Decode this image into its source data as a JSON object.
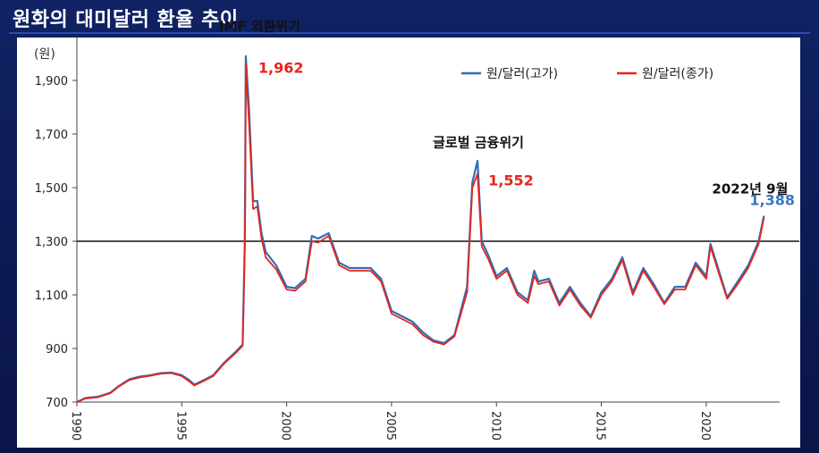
{
  "slide": {
    "title": "원화의 대미달러 환율 추이"
  },
  "chart_data": {
    "type": "line",
    "ylabel": "(원)",
    "ylim": [
      700,
      2000
    ],
    "xlim": [
      1990,
      2023.5
    ],
    "yticks": [
      700,
      900,
      1100,
      1300,
      1500,
      1700,
      1900
    ],
    "ytick_labels": [
      "700",
      "900",
      "1,100",
      "1,300",
      "1,500",
      "1,700",
      "1,900"
    ],
    "xticks": [
      1990,
      1995,
      2000,
      2005,
      2010,
      2015,
      2020
    ],
    "xtick_labels": [
      "1990",
      "1995",
      "2000",
      "2005",
      "2010",
      "2015",
      "2020"
    ],
    "reference_line": 1300,
    "legend_position": "top-right",
    "series": [
      {
        "name": "원/달러(고가)",
        "color": "#2e6fb5",
        "points": [
          [
            1990.0,
            700
          ],
          [
            1990.4,
            715
          ],
          [
            1991.0,
            720
          ],
          [
            1991.6,
            735
          ],
          [
            1992.0,
            760
          ],
          [
            1992.5,
            785
          ],
          [
            1993.0,
            795
          ],
          [
            1993.5,
            800
          ],
          [
            1994.0,
            808
          ],
          [
            1994.5,
            810
          ],
          [
            1995.0,
            800
          ],
          [
            1995.3,
            785
          ],
          [
            1995.6,
            765
          ],
          [
            1996.0,
            780
          ],
          [
            1996.5,
            800
          ],
          [
            1997.0,
            845
          ],
          [
            1997.6,
            890
          ],
          [
            1997.9,
            915
          ],
          [
            1998.0,
            1280
          ],
          [
            1998.02,
            1500
          ],
          [
            1998.05,
            1990
          ],
          [
            1998.2,
            1800
          ],
          [
            1998.4,
            1450
          ],
          [
            1998.6,
            1450
          ],
          [
            1998.8,
            1330
          ],
          [
            1999.0,
            1260
          ],
          [
            1999.5,
            1210
          ],
          [
            2000.0,
            1130
          ],
          [
            2000.4,
            1125
          ],
          [
            2000.9,
            1160
          ],
          [
            2001.2,
            1320
          ],
          [
            2001.5,
            1310
          ],
          [
            2002.0,
            1330
          ],
          [
            2002.5,
            1220
          ],
          [
            2003.0,
            1200
          ],
          [
            2003.5,
            1200
          ],
          [
            2004.0,
            1200
          ],
          [
            2004.5,
            1160
          ],
          [
            2005.0,
            1040
          ],
          [
            2005.5,
            1020
          ],
          [
            2006.0,
            1000
          ],
          [
            2006.5,
            960
          ],
          [
            2007.0,
            930
          ],
          [
            2007.5,
            920
          ],
          [
            2008.0,
            950
          ],
          [
            2008.6,
            1130
          ],
          [
            2008.85,
            1520
          ],
          [
            2009.1,
            1600
          ],
          [
            2009.3,
            1300
          ],
          [
            2009.6,
            1250
          ],
          [
            2010.0,
            1170
          ],
          [
            2010.5,
            1200
          ],
          [
            2011.0,
            1110
          ],
          [
            2011.5,
            1080
          ],
          [
            2011.8,
            1190
          ],
          [
            2012.0,
            1150
          ],
          [
            2012.5,
            1160
          ],
          [
            2013.0,
            1070
          ],
          [
            2013.5,
            1130
          ],
          [
            2014.0,
            1070
          ],
          [
            2014.5,
            1020
          ],
          [
            2015.0,
            1110
          ],
          [
            2015.5,
            1160
          ],
          [
            2016.0,
            1240
          ],
          [
            2016.5,
            1110
          ],
          [
            2017.0,
            1200
          ],
          [
            2017.5,
            1140
          ],
          [
            2018.0,
            1070
          ],
          [
            2018.5,
            1130
          ],
          [
            2019.0,
            1130
          ],
          [
            2019.5,
            1220
          ],
          [
            2020.0,
            1170
          ],
          [
            2020.2,
            1290
          ],
          [
            2020.6,
            1190
          ],
          [
            2021.0,
            1090
          ],
          [
            2021.5,
            1150
          ],
          [
            2022.0,
            1210
          ],
          [
            2022.5,
            1300
          ],
          [
            2022.75,
            1395
          ]
        ]
      },
      {
        "name": "원/달러(종가)",
        "color": "#e8231b",
        "points": [
          [
            1990.0,
            700
          ],
          [
            1990.4,
            713
          ],
          [
            1991.0,
            718
          ],
          [
            1991.6,
            733
          ],
          [
            1992.0,
            758
          ],
          [
            1992.5,
            782
          ],
          [
            1993.0,
            792
          ],
          [
            1993.5,
            798
          ],
          [
            1994.0,
            806
          ],
          [
            1994.5,
            808
          ],
          [
            1995.0,
            797
          ],
          [
            1995.3,
            780
          ],
          [
            1995.6,
            762
          ],
          [
            1996.0,
            777
          ],
          [
            1996.5,
            797
          ],
          [
            1997.0,
            842
          ],
          [
            1997.6,
            885
          ],
          [
            1997.9,
            910
          ],
          [
            1998.0,
            1250
          ],
          [
            1998.02,
            1400
          ],
          [
            1998.05,
            1962
          ],
          [
            1998.2,
            1750
          ],
          [
            1998.4,
            1420
          ],
          [
            1998.6,
            1430
          ],
          [
            1998.8,
            1310
          ],
          [
            1999.0,
            1240
          ],
          [
            1999.5,
            1195
          ],
          [
            2000.0,
            1120
          ],
          [
            2000.4,
            1115
          ],
          [
            2000.9,
            1150
          ],
          [
            2001.2,
            1300
          ],
          [
            2001.5,
            1295
          ],
          [
            2002.0,
            1320
          ],
          [
            2002.5,
            1210
          ],
          [
            2003.0,
            1190
          ],
          [
            2003.5,
            1190
          ],
          [
            2004.0,
            1190
          ],
          [
            2004.5,
            1150
          ],
          [
            2005.0,
            1030
          ],
          [
            2005.5,
            1010
          ],
          [
            2006.0,
            990
          ],
          [
            2006.5,
            950
          ],
          [
            2007.0,
            925
          ],
          [
            2007.5,
            915
          ],
          [
            2008.0,
            945
          ],
          [
            2008.6,
            1110
          ],
          [
            2008.85,
            1500
          ],
          [
            2009.1,
            1552
          ],
          [
            2009.3,
            1280
          ],
          [
            2009.6,
            1235
          ],
          [
            2010.0,
            1160
          ],
          [
            2010.5,
            1190
          ],
          [
            2011.0,
            1100
          ],
          [
            2011.5,
            1070
          ],
          [
            2011.8,
            1170
          ],
          [
            2012.0,
            1140
          ],
          [
            2012.5,
            1150
          ],
          [
            2013.0,
            1060
          ],
          [
            2013.5,
            1120
          ],
          [
            2014.0,
            1060
          ],
          [
            2014.5,
            1015
          ],
          [
            2015.0,
            1100
          ],
          [
            2015.5,
            1150
          ],
          [
            2016.0,
            1230
          ],
          [
            2016.5,
            1100
          ],
          [
            2017.0,
            1190
          ],
          [
            2017.5,
            1130
          ],
          [
            2018.0,
            1065
          ],
          [
            2018.5,
            1120
          ],
          [
            2019.0,
            1120
          ],
          [
            2019.5,
            1210
          ],
          [
            2020.0,
            1160
          ],
          [
            2020.2,
            1280
          ],
          [
            2020.6,
            1180
          ],
          [
            2021.0,
            1085
          ],
          [
            2021.5,
            1140
          ],
          [
            2022.0,
            1200
          ],
          [
            2022.5,
            1290
          ],
          [
            2022.75,
            1388
          ]
        ]
      }
    ],
    "annotations": [
      {
        "text": "IMF 외환위기",
        "color": "#111111",
        "x": 1998.05,
        "y": 1962,
        "role": "event"
      },
      {
        "text": "1,962",
        "color": "#e8231b",
        "x": 1998.05,
        "y": 1962,
        "role": "value"
      },
      {
        "text": "글로벌 금융위기",
        "color": "#111111",
        "x": 2009.1,
        "y": 1552,
        "role": "event"
      },
      {
        "text": "1,552",
        "color": "#e8231b",
        "x": 2009.1,
        "y": 1552,
        "role": "value"
      },
      {
        "text": "2022년 9월",
        "color": "#111111",
        "x": 2022.75,
        "y": 1388,
        "role": "event"
      },
      {
        "text": "1,388",
        "color": "#3a78c0",
        "x": 2022.75,
        "y": 1388,
        "role": "value"
      }
    ]
  }
}
